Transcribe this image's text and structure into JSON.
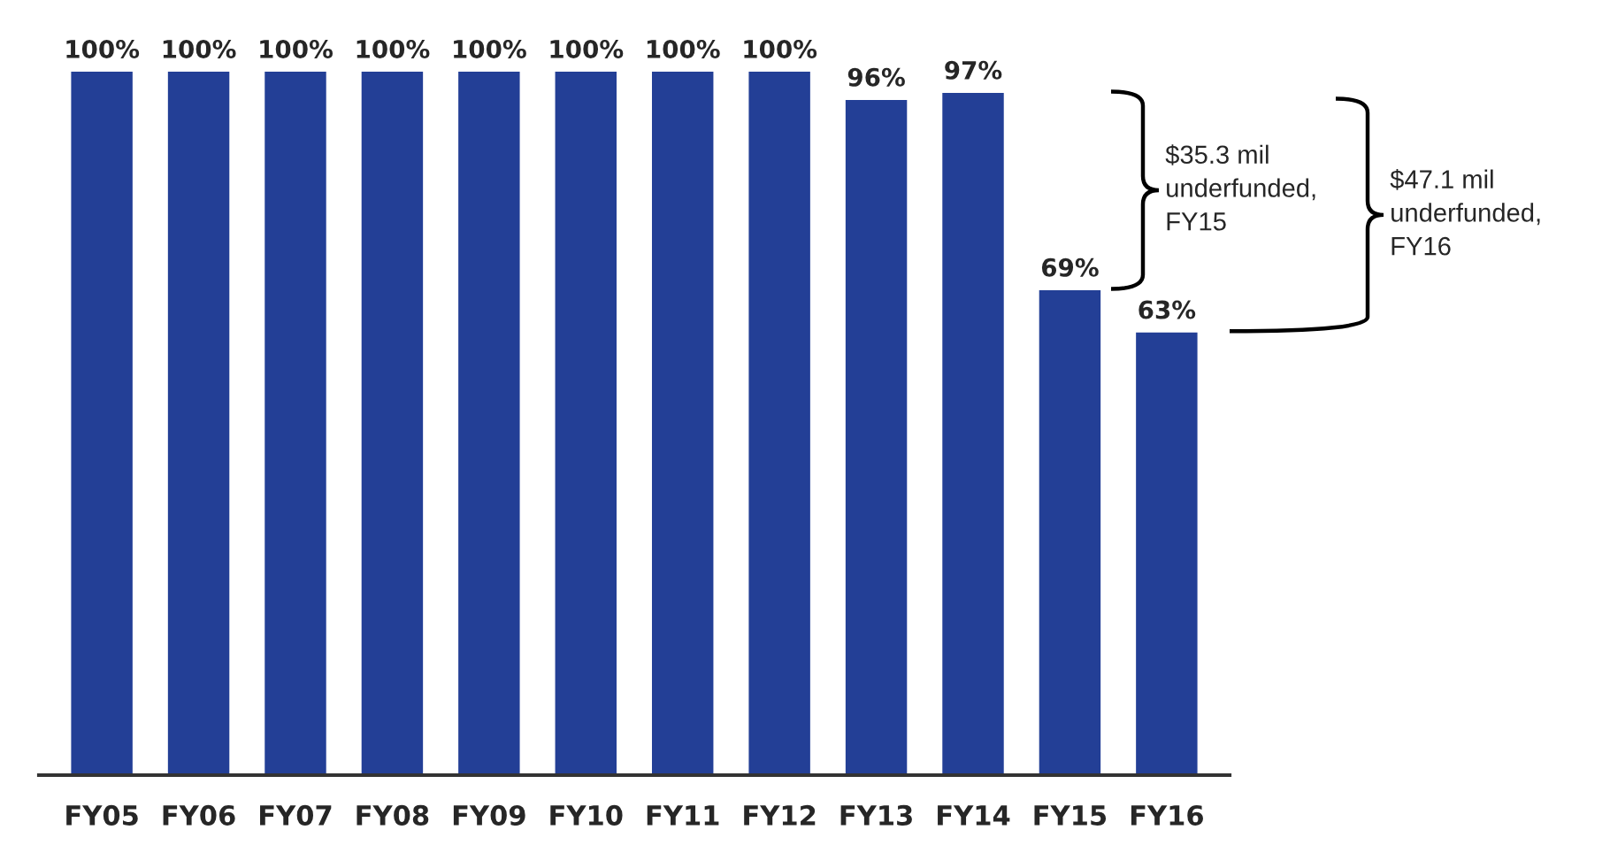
{
  "chart_data": {
    "type": "bar",
    "categories": [
      "FY05",
      "FY06",
      "FY07",
      "FY08",
      "FY09",
      "FY10",
      "FY11",
      "FY12",
      "FY13",
      "FY14",
      "FY15",
      "FY16"
    ],
    "values": [
      100,
      100,
      100,
      100,
      100,
      100,
      100,
      100,
      96,
      97,
      69,
      63
    ],
    "value_labels": [
      "100%",
      "100%",
      "100%",
      "100%",
      "100%",
      "100%",
      "100%",
      "100%",
      "96%",
      "97%",
      "69%",
      "63%"
    ],
    "color": "#233f96",
    "annotations": [
      "$35.3 mil underfunded, FY15",
      "$47.1 mil underfunded, FY16"
    ]
  }
}
